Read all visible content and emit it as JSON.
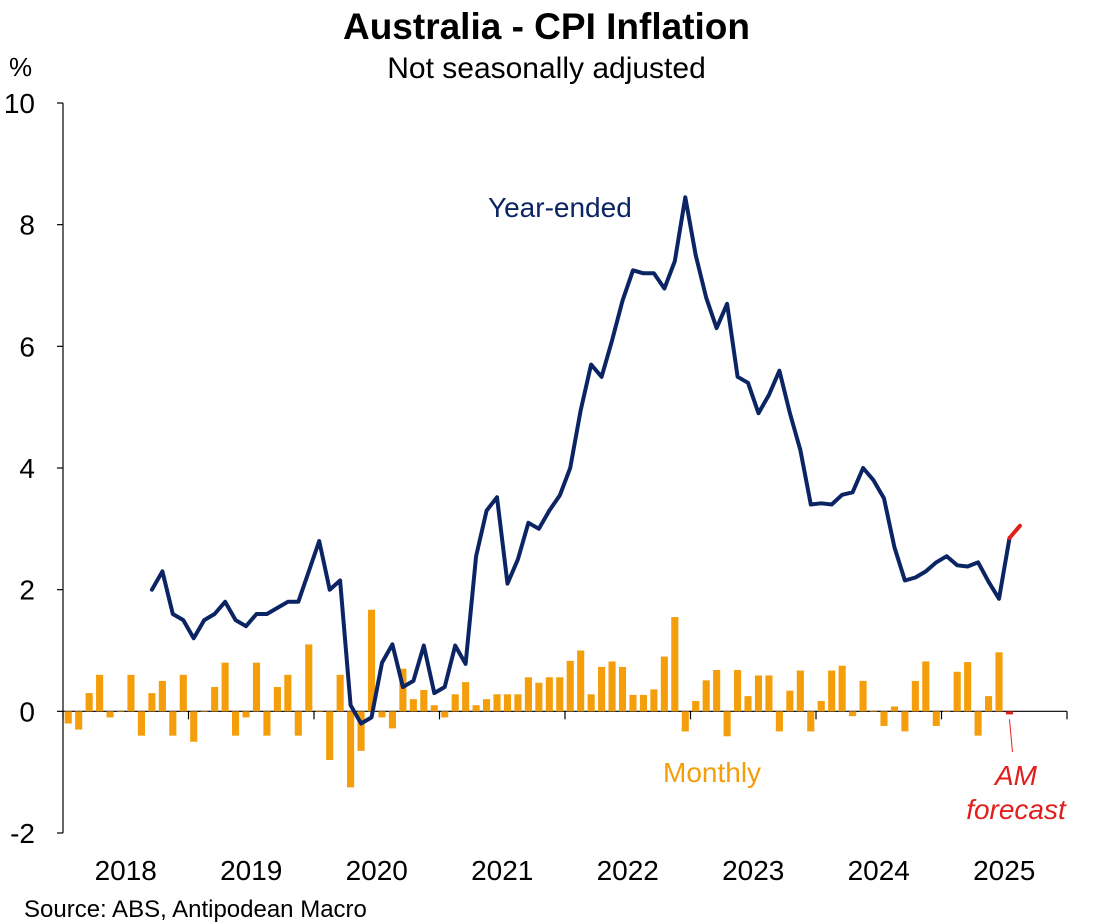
{
  "chart_data": {
    "type": "bar+line",
    "title": "Australia - CPI Inflation",
    "subtitle": "Not seasonally adjusted",
    "ylabel": "%",
    "ylim": [
      -2,
      10
    ],
    "yticks": [
      -2,
      0,
      2,
      4,
      6,
      8,
      10
    ],
    "xticks": [
      "2018",
      "2019",
      "2020",
      "2021",
      "2022",
      "2023",
      "2024",
      "2025"
    ],
    "xrange": [
      "2018-01",
      "2026-01"
    ],
    "colors": {
      "year_ended": "#0b2463",
      "monthly": "#f59e0b",
      "forecast": "#e0201c"
    },
    "annotations": {
      "year_ended": "Year-ended",
      "monthly": "Monthly",
      "forecast_line1": "AM",
      "forecast_line2": "forecast"
    },
    "source": "Source: ABS, Antipodean Macro",
    "monthly": {
      "start": "2018-01",
      "values": [
        -0.2,
        -0.3,
        0.3,
        0.6,
        -0.1,
        0,
        0.6,
        -0.4,
        0.3,
        0.5,
        -0.4,
        0.6,
        -0.5,
        0,
        0.4,
        0.8,
        -0.4,
        -0.1,
        0.8,
        -0.4,
        0.4,
        0.6,
        -0.4,
        1.1,
        0,
        -0.8,
        0.6,
        -1.25,
        -0.65,
        1.67,
        -0.1,
        -0.28,
        0.7,
        0.2,
        0.35,
        0.1,
        -0.1,
        0.28,
        0.48,
        0.1,
        0.2,
        0.28,
        0.28,
        0.28,
        0.56,
        0.47,
        0.56,
        0.56,
        0.83,
        1.0,
        0.28,
        0.73,
        0.82,
        0.73,
        0.27,
        0.27,
        0.36,
        0.9,
        1.55,
        -0.33,
        0.17,
        0.51,
        0.68,
        -0.41,
        0.68,
        0.25,
        0.59,
        0.59,
        -0.33,
        0.34,
        0.67,
        -0.33,
        0.17,
        0.67,
        0.75,
        -0.08,
        0.5,
        0,
        -0.24,
        0.08,
        -0.33,
        0.5,
        0.82,
        -0.24,
        0,
        0.65,
        0.81,
        -0.4,
        0.25,
        0.97
      ],
      "forecast_values": [
        -0.05
      ]
    },
    "year_ended": {
      "start": "2018-09",
      "values": [
        2.0,
        2.3,
        1.6,
        1.5,
        1.2,
        1.5,
        1.6,
        1.8,
        1.5,
        1.4,
        1.6,
        1.6,
        1.7,
        1.8,
        1.8,
        2.3,
        2.8,
        2.0,
        2.15,
        0.1,
        -0.2,
        -0.1,
        0.8,
        1.1,
        0.4,
        0.5,
        1.08,
        0.3,
        0.4,
        1.08,
        0.78,
        2.55,
        3.3,
        3.52,
        2.1,
        2.5,
        3.1,
        3.0,
        3.3,
        3.55,
        4.0,
        4.95,
        5.7,
        5.5,
        6.1,
        6.75,
        7.25,
        7.2,
        7.2,
        6.95,
        7.4,
        8.45,
        7.5,
        6.8,
        6.3,
        6.7,
        5.5,
        5.4,
        4.9,
        5.2,
        5.6,
        4.9,
        4.3,
        3.4,
        3.42,
        3.4,
        3.56,
        3.6,
        4.0,
        3.8,
        3.5,
        2.7,
        2.15,
        2.2,
        2.3,
        2.45,
        2.55,
        2.4,
        2.38,
        2.45,
        2.13,
        1.85,
        2.85
      ],
      "forecast_values": [
        2.85,
        3.05
      ]
    }
  }
}
